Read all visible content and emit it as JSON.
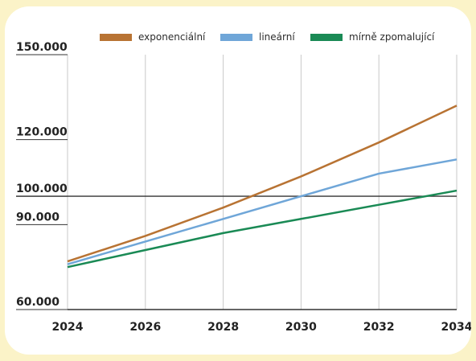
{
  "chart_data": {
    "type": "line",
    "x": [
      2024,
      2026,
      2028,
      2030,
      2032,
      2034
    ],
    "xticks": [
      "2024",
      "2026",
      "2028",
      "2030",
      "2032",
      "2034"
    ],
    "yticks": [
      60000,
      90000,
      100000,
      120000,
      150000
    ],
    "ytick_labels": [
      "60.000",
      "90.000",
      "100.000",
      "120.000",
      "150.000"
    ],
    "xlim": [
      2024,
      2034
    ],
    "ylim": [
      60000,
      150000
    ],
    "reference_line": 100000,
    "grid": "vertical",
    "legend_position": "top",
    "series": [
      {
        "name": "exponenciální",
        "color": "#b87333",
        "values": [
          77000,
          86000,
          96000,
          107000,
          119000,
          132000
        ]
      },
      {
        "name": "lineární",
        "color": "#6fa6d8",
        "values": [
          76000,
          84000,
          92000,
          100000,
          108000,
          113000
        ]
      },
      {
        "name": "mírně zpomalující",
        "color": "#1a8a55",
        "values": [
          75000,
          81000,
          87000,
          92000,
          97000,
          102000
        ]
      }
    ]
  }
}
